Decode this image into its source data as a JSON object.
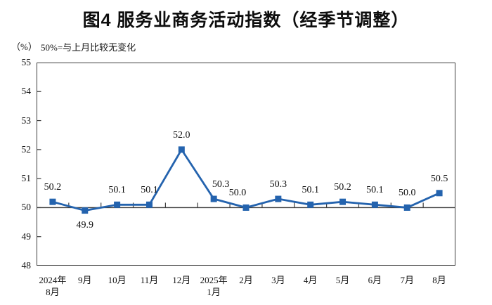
{
  "figure": {
    "title": "图4 服务业商务活动指数（经季节调整）",
    "unit_label": "（%）",
    "subtitle": "50%=与上月比较无变化"
  },
  "colors": {
    "line": "#2463AE",
    "axis": "#3d3d3d",
    "text": "#141414"
  },
  "chart_data": {
    "type": "line",
    "title": "图4 服务业商务活动指数（经季节调整）",
    "unit": "%",
    "reference_note": "50%=与上月比较无变化",
    "categories": [
      [
        "2024年",
        "8月"
      ],
      [
        "9月"
      ],
      [
        "10月"
      ],
      [
        "11月"
      ],
      [
        "12月"
      ],
      [
        "2025年",
        "1月"
      ],
      [
        "2月"
      ],
      [
        "3月"
      ],
      [
        "4月"
      ],
      [
        "5月"
      ],
      [
        "6月"
      ],
      [
        "7月"
      ],
      [
        "8月"
      ]
    ],
    "series": [
      {
        "name": "服务业商务活动指数",
        "values": [
          50.2,
          49.9,
          50.1,
          50.1,
          52.0,
          50.3,
          50.0,
          50.3,
          50.1,
          50.2,
          50.1,
          50.0,
          50.5
        ]
      }
    ],
    "data_labels": [
      "50.2",
      "49.9",
      "50.1",
      "50.1",
      "52.0",
      "50.3",
      "50.0",
      "50.3",
      "50.1",
      "50.2",
      "50.1",
      "50.0",
      "50.5"
    ],
    "label_below_indices": [
      1
    ],
    "label_dx": {
      "5": 10,
      "6": -12
    },
    "ylim": [
      48,
      55
    ],
    "ytick_step": 1,
    "reference_line": 50,
    "grid": false,
    "legend": "none",
    "marker": "square",
    "line_color": "#2463AE"
  }
}
